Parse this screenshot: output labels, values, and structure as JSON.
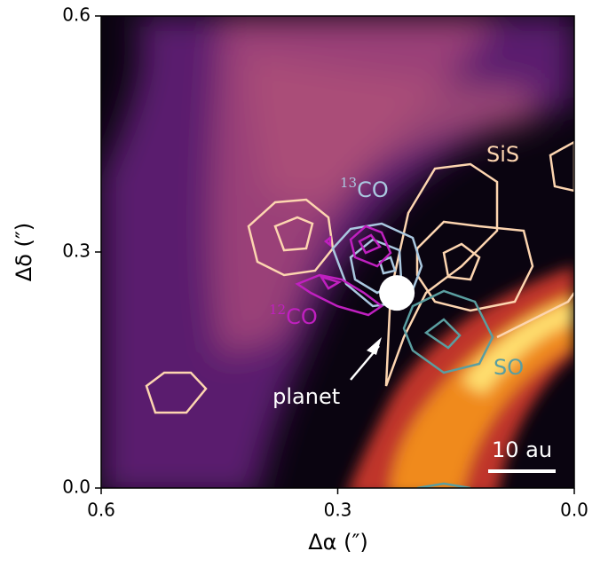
{
  "chart_data": {
    "type": "image",
    "xlabel": "Δα (″)",
    "ylabel": "Δδ (″)",
    "xlim": [
      0.6,
      0.0
    ],
    "ylim": [
      0.0,
      0.6
    ],
    "xticks": [
      0.6,
      0.3,
      {
        "value": 0,
        "label": "0.0"
      }
    ],
    "yticks": [
      {
        "value": 0,
        "label": "0.0"
      },
      0.3,
      0.6
    ],
    "planet": {
      "label": "planet",
      "x": 0.225,
      "y": 0.248,
      "color": "#ffffff"
    },
    "annotations": [
      {
        "sup": "",
        "text": "SiS",
        "color": "#fdd5b0"
      },
      {
        "sup": "13",
        "text": "CO",
        "color": "#aac8e0"
      },
      {
        "sup": "12",
        "text": "CO",
        "color": "#c020c0"
      },
      {
        "sup": "",
        "text": "SO",
        "color": "#5a9ea0"
      }
    ],
    "scalebar": "10 au"
  }
}
